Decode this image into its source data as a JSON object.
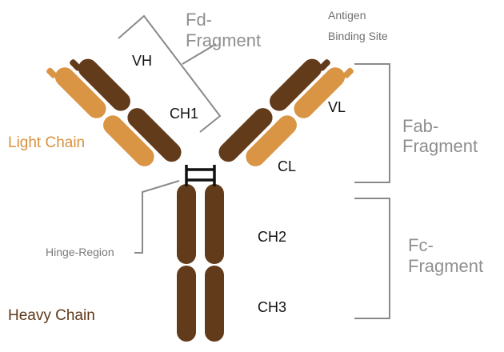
{
  "labels": {
    "fd_fragment": [
      "Fd-",
      "Fragment"
    ],
    "antigen_binding_site": [
      "Antigen",
      "Binding Site"
    ],
    "vh": "VH",
    "ch1": "CH1",
    "vl": "VL",
    "cl": "CL",
    "fab_fragment": [
      "Fab-",
      "Fragment"
    ],
    "light_chain": "Light Chain",
    "hinge_region": "Hinge-Region",
    "ch2": "CH2",
    "ch3": "CH3",
    "fc_fragment": [
      "Fc-",
      "Fragment"
    ],
    "heavy_chain": "Heavy Chain"
  },
  "colors": {
    "heavy_chain": "#623b1a",
    "light_chain": "#d99444",
    "light_chain_text": "#d9913f",
    "heavy_chain_text": "#5e3818",
    "bracket": "#8a8a8a",
    "fragment_text": "#8f8f8f",
    "domain_text": "#111111",
    "hinge_bond": "#111111"
  }
}
